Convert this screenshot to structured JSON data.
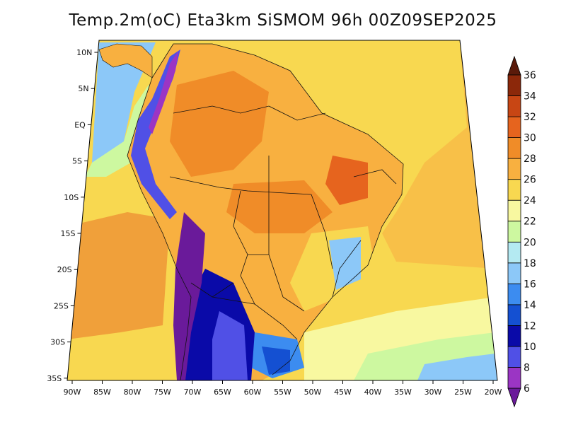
{
  "title": "Temp.2m(oC) Eta3km SiSMOM 96h 00Z09SEP2025",
  "map": {
    "lat_labels": [
      "10N",
      "5N",
      "EQ",
      "5S",
      "10S",
      "15S",
      "20S",
      "25S",
      "30S",
      "35S"
    ],
    "lon_labels": [
      "90W",
      "85W",
      "80W",
      "75W",
      "70W",
      "65W",
      "60W",
      "55W",
      "50W",
      "45W",
      "40W",
      "35W",
      "30W",
      "25W",
      "20W"
    ]
  },
  "colorbar": {
    "levels": [
      "6",
      "8",
      "10",
      "12",
      "14",
      "16",
      "18",
      "20",
      "22",
      "24",
      "26",
      "28",
      "30",
      "32",
      "34",
      "36"
    ],
    "colors": [
      "#6a1a9a",
      "#9b35c4",
      "#5050e6",
      "#0a0aa8",
      "#1450d2",
      "#3c8cf0",
      "#8cc8f8",
      "#b4eaf2",
      "#cdf8a0",
      "#f8f8a0",
      "#f8d850",
      "#f8b040",
      "#f08c28",
      "#e6641e",
      "#c84614",
      "#8c280a",
      "#5a1a0a"
    ]
  }
}
